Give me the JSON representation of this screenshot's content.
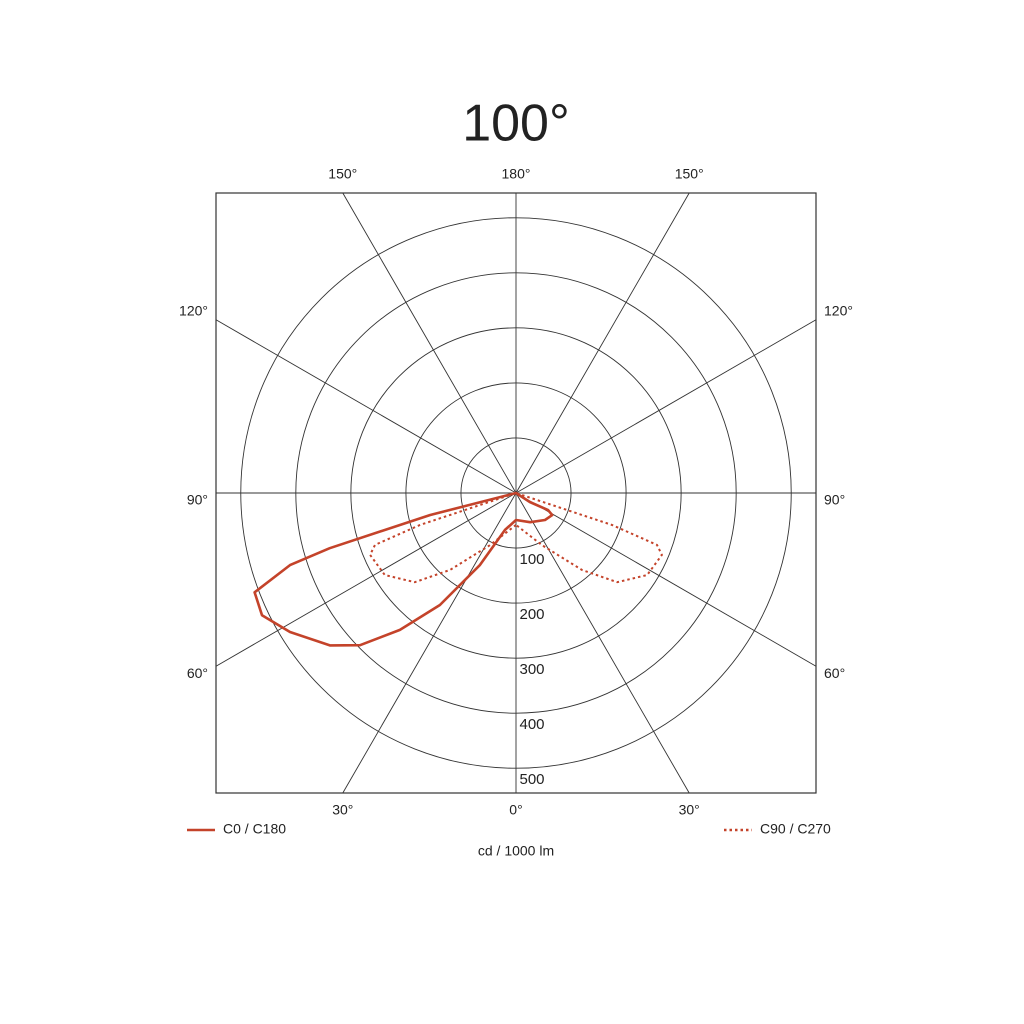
{
  "chart_data": {
    "type": "polar",
    "title": "100°",
    "axis_label": "cd / 1000 lm",
    "rlim": [
      0,
      545
    ],
    "rticks": [
      100,
      200,
      300,
      400,
      500
    ],
    "angle_ticks": [
      {
        "value": -150,
        "label": "150°"
      },
      {
        "value": -120,
        "label": "120°"
      },
      {
        "value": -90,
        "label": "90°"
      },
      {
        "value": -60,
        "label": "60°"
      },
      {
        "value": -30,
        "label": "30°"
      },
      {
        "value": 0,
        "label": "0°"
      },
      {
        "value": 30,
        "label": "30°"
      },
      {
        "value": 60,
        "label": "60°"
      },
      {
        "value": 90,
        "label": "90°"
      },
      {
        "value": 120,
        "label": "120°"
      },
      {
        "value": 150,
        "label": "150°"
      },
      {
        "value": 180,
        "label": "180°"
      }
    ],
    "series": [
      {
        "name": "C0 / C180",
        "color": "#c4432a",
        "dash": false,
        "x": [
          -75.6,
          -75.6,
          -73.5,
          -72.3,
          -69.2,
          -64.3,
          -58.4,
          -50.7,
          -45.7,
          -40.3,
          -34.2,
          -26.6,
          -16.6,
          0,
          25.8,
          47,
          58.6,
          62,
          57
        ],
        "values": [
          0,
          161,
          353,
          431,
          508,
          512,
          482,
          437,
          396,
          326,
          246,
          146,
          70,
          49,
          59,
          72,
          77,
          66,
          30
        ]
      },
      {
        "name": "C90 / C270",
        "color": "#c4432a",
        "dash": true,
        "x": [
          0,
          -26.6,
          -40.6,
          -48.6,
          -58,
          -67,
          -69.8,
          -71.6,
          -71.6,
          0,
          71.6,
          71.6,
          69.8,
          67,
          58,
          48.6,
          40.6,
          26.6,
          0
        ],
        "values": [
          58,
          106,
          184,
          245,
          281,
          288,
          273,
          184,
          69,
          0,
          69,
          184,
          273,
          288,
          281,
          245,
          184,
          106,
          58
        ]
      }
    ]
  }
}
